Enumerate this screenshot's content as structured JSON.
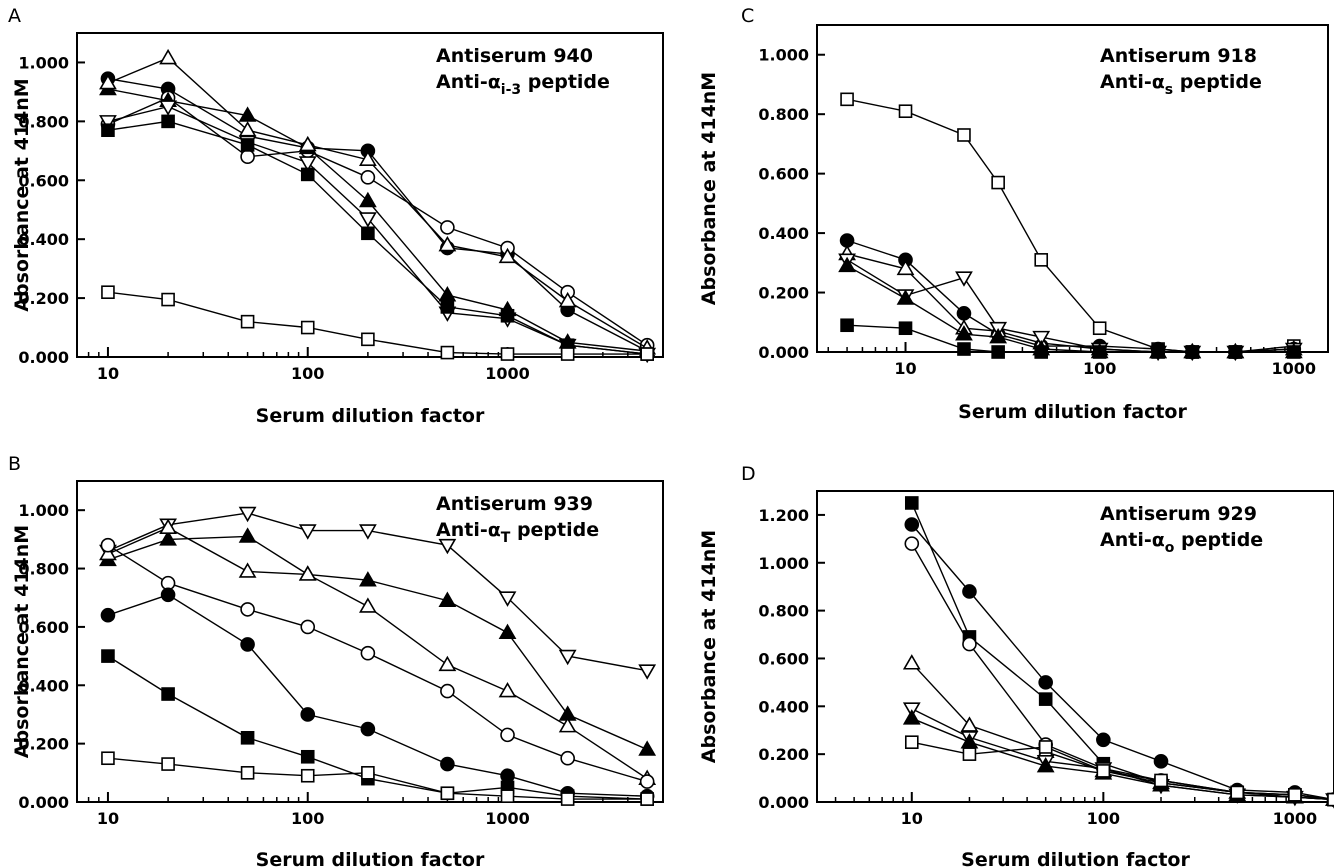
{
  "figure": {
    "panels": [
      {
        "letter": "A",
        "title_line1": "Antiserum 940",
        "title_line2": "Anti-αi-3 peptide",
        "ylabel": "Absorbance at 414nM",
        "xlabel": "Serum dilution factor"
      },
      {
        "letter": "C",
        "title_line1": "Antiserum 918",
        "title_line2": "Anti-αs peptide",
        "ylabel": "Absorbance at 414nM",
        "xlabel": "Serum dilution factor"
      },
      {
        "letter": "B",
        "title_line1": "Antiserum 939",
        "title_line2": "Anti-αT peptide",
        "ylabel": "Absorbance at 414nM",
        "xlabel": "Serum dilution factor"
      },
      {
        "letter": "D",
        "title_line1": "Antiserum 929",
        "title_line2": "Anti-αo peptide",
        "ylabel": "Absorbance at 414nM",
        "xlabel": "Serum dilution factor"
      }
    ]
  },
  "chart_data": [
    {
      "type": "line",
      "panel": "A",
      "title": "Antiserum 940 Anti-αi-3 peptide",
      "xlabel": "Serum dilution factor",
      "ylabel": "Absorbance at 414nM",
      "xscale": "log",
      "xlim": [
        7,
        6000
      ],
      "ylim": [
        0,
        1.1
      ],
      "xticks": [
        10,
        100,
        1000
      ],
      "xtick_labels": [
        "10",
        "100",
        "1000"
      ],
      "yticks": [
        0,
        0.2,
        0.4,
        0.6,
        0.8,
        1.0
      ],
      "ytick_labels": [
        "0.000",
        "0.200",
        "0.400",
        "0.600",
        "0.800",
        "1.000"
      ],
      "grid": false,
      "legend": "none",
      "series": [
        {
          "marker": "circle-filled",
          "x": [
            10,
            20,
            50,
            100,
            200,
            500,
            1000,
            2000,
            5000
          ],
          "y": [
            0.945,
            0.91,
            0.75,
            0.71,
            0.7,
            0.37,
            0.35,
            0.16,
            0.02
          ]
        },
        {
          "marker": "circle-open",
          "x": [
            10,
            20,
            50,
            100,
            200,
            500,
            1000,
            2000,
            5000
          ],
          "y": [
            0.79,
            0.88,
            0.68,
            0.7,
            0.61,
            0.44,
            0.37,
            0.22,
            0.04
          ]
        },
        {
          "marker": "triangle-up-filled",
          "x": [
            10,
            20,
            50,
            100,
            200,
            500,
            1000,
            2000,
            5000
          ],
          "y": [
            0.91,
            0.87,
            0.82,
            0.71,
            0.53,
            0.21,
            0.16,
            0.05,
            0.02
          ]
        },
        {
          "marker": "triangle-up-open",
          "x": [
            10,
            20,
            50,
            100,
            200,
            500,
            1000,
            2000,
            5000
          ],
          "y": [
            0.93,
            1.015,
            0.77,
            0.72,
            0.67,
            0.38,
            0.34,
            0.19,
            0.03
          ]
        },
        {
          "marker": "triangle-down-open",
          "x": [
            10,
            20,
            50,
            100,
            200,
            500,
            1000,
            2000,
            5000
          ],
          "y": [
            0.8,
            0.85,
            0.73,
            0.66,
            0.47,
            0.15,
            0.13,
            0.04,
            0.01
          ]
        },
        {
          "marker": "square-filled",
          "x": [
            10,
            20,
            50,
            100,
            200,
            500,
            1000,
            2000,
            5000
          ],
          "y": [
            0.77,
            0.8,
            0.72,
            0.62,
            0.42,
            0.17,
            0.14,
            0.04,
            0.01
          ]
        },
        {
          "marker": "square-open",
          "x": [
            10,
            20,
            50,
            100,
            200,
            500,
            1000,
            2000,
            5000
          ],
          "y": [
            0.22,
            0.195,
            0.12,
            0.1,
            0.06,
            0.015,
            0.01,
            0.01,
            0.01
          ]
        }
      ]
    },
    {
      "type": "line",
      "panel": "C",
      "title": "Antiserum 918 Anti-αs peptide",
      "xlabel": "Serum dilution factor",
      "ylabel": "Absorbance at 414nM",
      "xscale": "log",
      "xlim": [
        3.5,
        1500
      ],
      "ylim": [
        0,
        1.1
      ],
      "xticks": [
        10,
        100,
        1000
      ],
      "xtick_labels": [
        "10",
        "100",
        "1000"
      ],
      "yticks": [
        0,
        0.2,
        0.4,
        0.6,
        0.8,
        1.0
      ],
      "ytick_labels": [
        "0.000",
        "0.200",
        "0.400",
        "0.600",
        "0.800",
        "1.000"
      ],
      "grid": false,
      "legend": "none",
      "series": [
        {
          "marker": "square-open",
          "x": [
            5,
            10,
            20,
            30,
            50,
            100,
            200,
            300,
            500,
            1000
          ],
          "y": [
            0.85,
            0.81,
            0.73,
            0.57,
            0.31,
            0.08,
            0.01,
            0.0,
            0.0,
            0.02
          ]
        },
        {
          "marker": "circle-filled",
          "x": [
            5,
            10,
            20,
            30,
            50,
            100,
            200,
            300,
            500,
            1000
          ],
          "y": [
            0.375,
            0.31,
            0.13,
            0.06,
            0.02,
            0.02,
            0.01,
            0.0,
            0.0,
            0.01
          ]
        },
        {
          "marker": "triangle-up-open",
          "x": [
            5,
            10,
            20,
            30,
            50,
            100,
            200,
            300,
            500,
            1000
          ],
          "y": [
            0.33,
            0.28,
            0.08,
            0.07,
            0.03,
            0.01,
            0.0,
            0.0,
            0.0,
            0.01
          ]
        },
        {
          "marker": "triangle-down-open",
          "x": [
            5,
            10,
            20,
            30,
            50,
            100,
            200,
            300,
            500,
            1000
          ],
          "y": [
            0.31,
            0.19,
            0.25,
            0.08,
            0.05,
            0.01,
            0.0,
            0.0,
            0.0,
            0.01
          ]
        },
        {
          "marker": "triangle-up-filled",
          "x": [
            5,
            10,
            20,
            30,
            50,
            100,
            200,
            300,
            500,
            1000
          ],
          "y": [
            0.29,
            0.18,
            0.06,
            0.05,
            0.01,
            0.0,
            0.0,
            0.0,
            0.0,
            0.0
          ]
        },
        {
          "marker": "square-filled",
          "x": [
            5,
            10,
            20,
            30,
            50,
            100,
            200,
            300,
            500,
            1000
          ],
          "y": [
            0.09,
            0.08,
            0.01,
            0.0,
            0.0,
            0.0,
            0.0,
            0.0,
            0.0,
            0.0
          ]
        }
      ]
    },
    {
      "type": "line",
      "panel": "B",
      "title": "Antiserum 939 Anti-αT peptide",
      "xlabel": "Serum dilution factor",
      "ylabel": "Absorbance at 414nM",
      "xscale": "log",
      "xlim": [
        7,
        6000
      ],
      "ylim": [
        0,
        1.1
      ],
      "xticks": [
        10,
        100,
        1000
      ],
      "xtick_labels": [
        "10",
        "100",
        "1000"
      ],
      "yticks": [
        0,
        0.2,
        0.4,
        0.6,
        0.8,
        1.0
      ],
      "ytick_labels": [
        "0.000",
        "0.200",
        "0.400",
        "0.600",
        "0.800",
        "1.000"
      ],
      "grid": false,
      "legend": "none",
      "series": [
        {
          "marker": "triangle-down-open",
          "x": [
            10,
            20,
            50,
            100,
            200,
            500,
            1000,
            2000,
            5000
          ],
          "y": [
            0.86,
            0.95,
            0.99,
            0.93,
            0.93,
            0.88,
            0.7,
            0.5,
            0.45
          ]
        },
        {
          "marker": "triangle-up-filled",
          "x": [
            10,
            20,
            50,
            100,
            200,
            500,
            1000,
            2000,
            5000
          ],
          "y": [
            0.83,
            0.9,
            0.91,
            0.78,
            0.76,
            0.69,
            0.58,
            0.3,
            0.18
          ]
        },
        {
          "marker": "triangle-up-open",
          "x": [
            10,
            20,
            50,
            100,
            200,
            500,
            1000,
            2000,
            5000
          ],
          "y": [
            0.85,
            0.94,
            0.79,
            0.78,
            0.67,
            0.47,
            0.38,
            0.26,
            0.08
          ]
        },
        {
          "marker": "circle-open",
          "x": [
            10,
            20,
            50,
            100,
            200,
            500,
            1000,
            2000,
            5000
          ],
          "y": [
            0.88,
            0.75,
            0.66,
            0.6,
            0.51,
            0.38,
            0.23,
            0.15,
            0.07
          ]
        },
        {
          "marker": "circle-filled",
          "x": [
            10,
            20,
            50,
            100,
            200,
            500,
            1000,
            2000,
            5000
          ],
          "y": [
            0.64,
            0.71,
            0.54,
            0.3,
            0.25,
            0.13,
            0.09,
            0.03,
            0.02
          ]
        },
        {
          "marker": "square-filled",
          "x": [
            10,
            20,
            50,
            100,
            200,
            500,
            1000,
            2000,
            5000
          ],
          "y": [
            0.5,
            0.37,
            0.22,
            0.155,
            0.08,
            0.03,
            0.05,
            0.02,
            0.01
          ]
        },
        {
          "marker": "square-open",
          "x": [
            10,
            20,
            50,
            100,
            200,
            500,
            1000,
            2000,
            5000
          ],
          "y": [
            0.15,
            0.13,
            0.1,
            0.09,
            0.1,
            0.03,
            0.02,
            0.01,
            0.01
          ]
        }
      ]
    },
    {
      "type": "line",
      "panel": "D",
      "title": "Antiserum 929 Anti-αo peptide",
      "xlabel": "Serum dilution factor",
      "ylabel": "Absorbance at 414nM",
      "xscale": "log",
      "xlim": [
        3.2,
        1600
      ],
      "ylim": [
        0,
        1.3
      ],
      "xticks": [
        10,
        100,
        1000
      ],
      "xtick_labels": [
        "10",
        "100",
        "1000"
      ],
      "yticks": [
        0,
        0.2,
        0.4,
        0.6,
        0.8,
        1.0,
        1.2
      ],
      "ytick_labels": [
        "0.000",
        "0.200",
        "0.400",
        "0.600",
        "0.800",
        "1.000",
        "1.200"
      ],
      "grid": false,
      "legend": "none",
      "series": [
        {
          "marker": "square-filled",
          "x": [
            10,
            20,
            50,
            100,
            200,
            500,
            1000,
            1600
          ],
          "y": [
            1.25,
            0.69,
            0.43,
            0.16,
            0.08,
            0.04,
            0.03,
            0.01
          ]
        },
        {
          "marker": "circle-filled",
          "x": [
            10,
            20,
            50,
            100,
            200,
            500,
            1000,
            1600
          ],
          "y": [
            1.16,
            0.88,
            0.5,
            0.26,
            0.17,
            0.05,
            0.04,
            0.01
          ]
        },
        {
          "marker": "circle-open",
          "x": [
            10,
            20,
            50,
            100,
            200,
            500,
            1000,
            1600
          ],
          "y": [
            1.08,
            0.66,
            0.24,
            0.14,
            0.09,
            0.04,
            0.03,
            0.01
          ]
        },
        {
          "marker": "triangle-up-open",
          "x": [
            10,
            20,
            50,
            100,
            200,
            500,
            1000,
            1600
          ],
          "y": [
            0.58,
            0.32,
            0.21,
            0.13,
            0.08,
            0.04,
            0.02,
            0.01
          ]
        },
        {
          "marker": "triangle-down-open",
          "x": [
            10,
            20,
            50,
            100,
            200,
            500,
            1000,
            1600
          ],
          "y": [
            0.39,
            0.27,
            0.17,
            0.14,
            0.07,
            0.03,
            0.02,
            0.01
          ]
        },
        {
          "marker": "triangle-up-filled",
          "x": [
            10,
            20,
            50,
            100,
            200,
            500,
            1000,
            1600
          ],
          "y": [
            0.35,
            0.25,
            0.15,
            0.12,
            0.07,
            0.03,
            0.02,
            0.01
          ]
        },
        {
          "marker": "square-open",
          "x": [
            10,
            20,
            50,
            100,
            200,
            500,
            1000,
            1600
          ],
          "y": [
            0.25,
            0.2,
            0.23,
            0.13,
            0.09,
            0.04,
            0.03,
            0.01
          ]
        }
      ]
    }
  ]
}
